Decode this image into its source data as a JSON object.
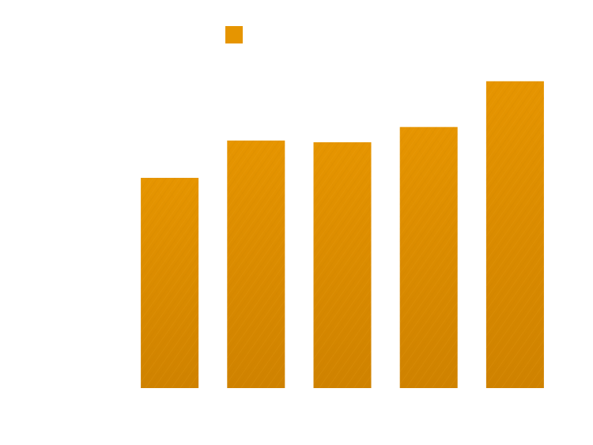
{
  "chart_data": {
    "type": "bar",
    "categories": [
      "",
      "",
      "",
      "",
      ""
    ],
    "values": [
      62,
      73,
      72.5,
      77,
      90.5
    ],
    "ylim": [
      0,
      100
    ],
    "grid": false,
    "legend": {
      "placement": "top-center",
      "entries": [
        {
          "color": "#e69500"
        }
      ]
    }
  },
  "colors": {
    "bar_fill": "#e69500",
    "bar_shade": "#cf8200",
    "texture_light": "#f0aa22",
    "texture_dark": "#c47a00",
    "background": "#ffffff"
  }
}
